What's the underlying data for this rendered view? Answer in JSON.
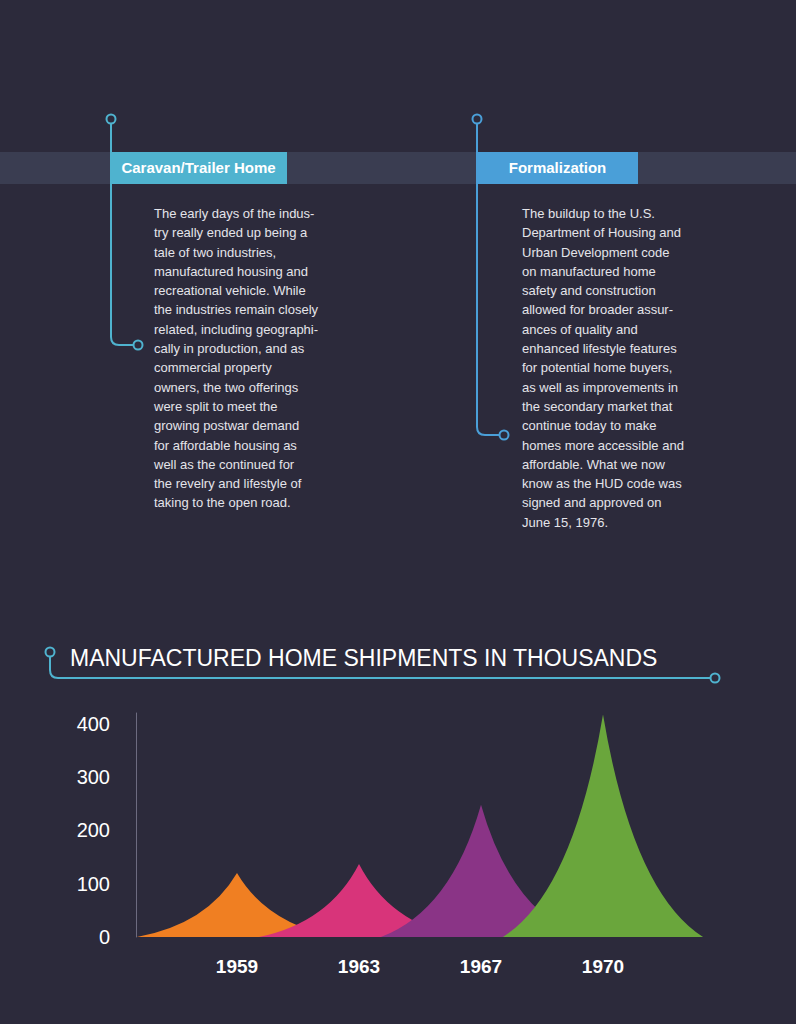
{
  "sections": [
    {
      "title": "Caravan/Trailer Home",
      "lines": [
        "The early days of the indus-",
        "try really ended up being a",
        "tale of two industries,",
        "manufactured housing and",
        "recreational vehicle. While",
        "the industries remain closely",
        "related, including geographi-",
        "cally in production, and as",
        "commercial property",
        "owners, the two offerings",
        "were split to meet the",
        "growing postwar demand",
        "for affordable housing as",
        "well as the continued for",
        "the revelry and lifestyle of",
        "taking to the open road."
      ]
    },
    {
      "title": "Formalization",
      "lines": [
        "The buildup to the U.S.",
        "Department of Housing and",
        "Urban Development code",
        "on manufactured home",
        "safety and construction",
        "allowed for broader assur-",
        "ances of quality and",
        "enhanced lifestyle features",
        "for potential home buyers,",
        "as well as improvements in",
        "the secondary market that",
        "continue today to make",
        "homes more accessible and",
        "affordable. What we now",
        "know as the HUD code was",
        "signed and approved on",
        "June 15, 1976."
      ]
    }
  ],
  "chart_data": {
    "type": "area",
    "title": "MANUFACTURED HOME SHIPMENTS IN THOUSANDS",
    "categories": [
      "1959",
      "1963",
      "1967",
      "1970"
    ],
    "values": [
      120,
      137,
      248,
      417
    ],
    "colors": [
      "#f07f22",
      "#d8347a",
      "#8a3486",
      "#6aa63c"
    ],
    "ylim": [
      0,
      420
    ],
    "yticks": [
      0,
      100,
      200,
      300,
      400
    ],
    "grid": false
  }
}
